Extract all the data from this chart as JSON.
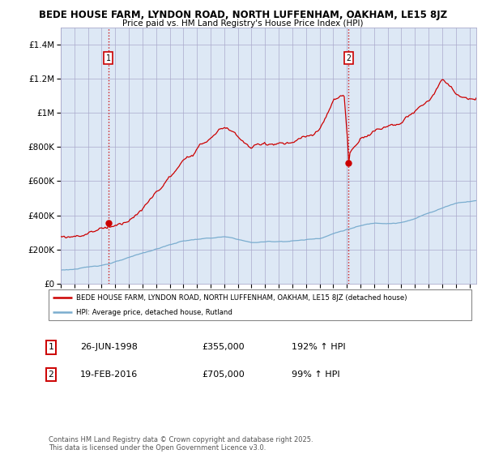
{
  "title1": "BEDE HOUSE FARM, LYNDON ROAD, NORTH LUFFENHAM, OAKHAM, LE15 8JZ",
  "title2": "Price paid vs. HM Land Registry's House Price Index (HPI)",
  "ylim": [
    0,
    1500000
  ],
  "yticks": [
    0,
    200000,
    400000,
    600000,
    800000,
    1000000,
    1200000,
    1400000
  ],
  "ytick_labels": [
    "£0",
    "£200K",
    "£400K",
    "£600K",
    "£800K",
    "£1M",
    "£1.2M",
    "£1.4M"
  ],
  "sale1_year": 1998.48,
  "sale1_price": 355000,
  "sale2_year": 2016.13,
  "sale2_price": 705000,
  "line1_color": "#cc0000",
  "line2_color": "#7aadcf",
  "vline_color": "#cc0000",
  "grid_color": "#aaaacc",
  "plot_bg": "#dde8f5",
  "background": "#ffffff",
  "legend1_text": "BEDE HOUSE FARM, LYNDON ROAD, NORTH LUFFENHAM, OAKHAM, LE15 8JZ (detached house)",
  "legend2_text": "HPI: Average price, detached house, Rutland",
  "annotation1_date": "26-JUN-1998",
  "annotation1_price": "£355,000",
  "annotation1_hpi": "192% ↑ HPI",
  "annotation2_date": "19-FEB-2016",
  "annotation2_price": "£705,000",
  "annotation2_hpi": "99% ↑ HPI",
  "footer": "Contains HM Land Registry data © Crown copyright and database right 2025.\nThis data is licensed under the Open Government Licence v3.0.",
  "xmin": 1995,
  "xmax": 2025.5
}
